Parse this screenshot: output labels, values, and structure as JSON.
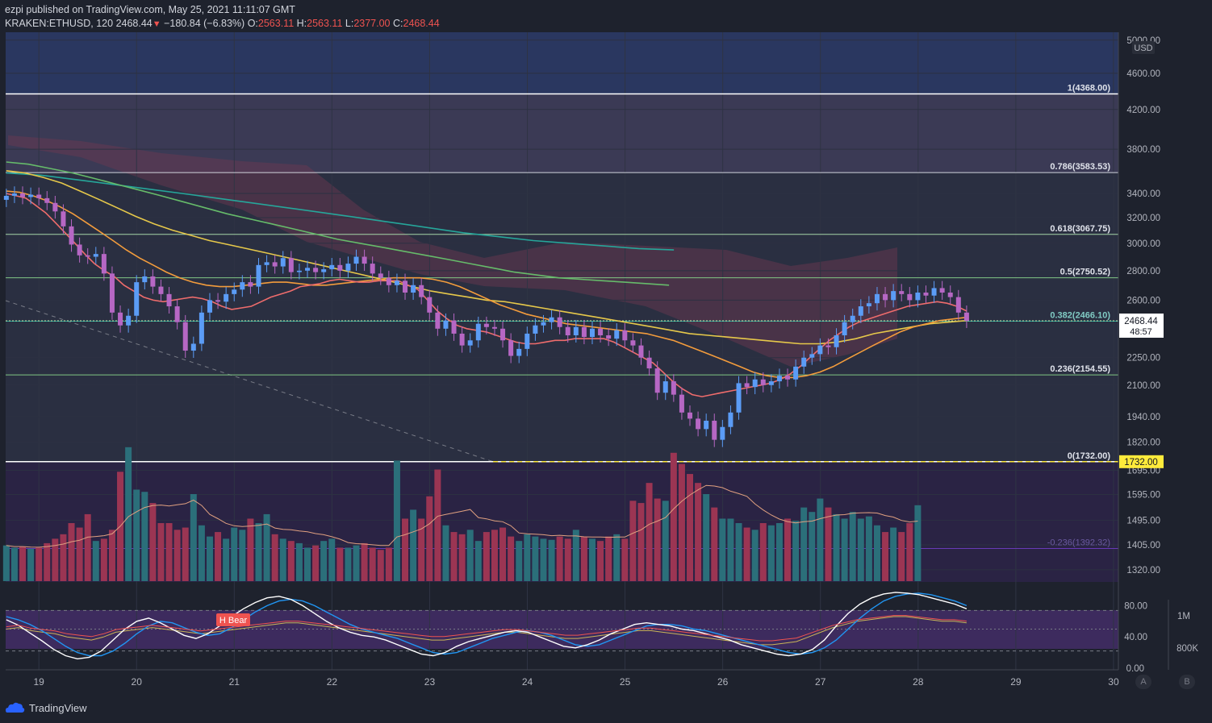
{
  "header": {
    "publisher": "ezpi published on TradingView.com, May 25, 2021 11:11:07 GMT",
    "symbol": "KRAKEN:ETHUSD, 120",
    "last": "2468.44",
    "change": "−180.84 (−6.83%)",
    "o_label": "O:",
    "o_value": "2563.11",
    "h_label": "H:",
    "h_value": "2563.11",
    "l_label": "L:",
    "l_value": "2377.00",
    "c_label": "C:",
    "c_value": "2468.44"
  },
  "brand": {
    "name": "TradingView"
  },
  "axis_buttons": {
    "auto": "A",
    "log": "B"
  },
  "colors": {
    "up": "#5b9cf6",
    "down": "#b667c4",
    "bg": "#1e222d",
    "highlight": "#ffeb3b"
  },
  "chart_data": {
    "type": "candlestick",
    "title": "KRAKEN:ETHUSD, 120",
    "price_axis": {
      "unit": "USD",
      "scale": "log",
      "ticks": [
        5000,
        4600,
        4200,
        3800,
        3400,
        3200,
        3000,
        2800,
        2600,
        2250,
        2100,
        1940,
        1820,
        1695,
        1595,
        1495,
        1405,
        1320
      ],
      "tick_labels": [
        "5000.00",
        "4600.00",
        "4200.00",
        "3800.00",
        "3400.00",
        "3200.00",
        "3000.00",
        "2800.00",
        "2600.00",
        "2250.00",
        "2100.00",
        "1940.00",
        "1820.00",
        "1695.00",
        "1595.00",
        "1495.00",
        "1405.00",
        "1320.00"
      ],
      "range": [
        1280,
        5100
      ]
    },
    "last_price": {
      "value": 2468.44,
      "label": "2468.44",
      "countdown": "48:57"
    },
    "low_marker": {
      "value": 1732,
      "label": "1732.00"
    },
    "x_axis": {
      "labels": [
        "19",
        "20",
        "21",
        "22",
        "23",
        "24",
        "25",
        "26",
        "27",
        "28",
        "29",
        "30"
      ],
      "range": [
        18.66,
        30.05
      ]
    },
    "fibonacci": [
      {
        "ratio": "1",
        "price": 4368.0,
        "label": "1(4368.00)"
      },
      {
        "ratio": "0.786",
        "price": 3583.53,
        "label": "0.786(3583.53)"
      },
      {
        "ratio": "0.618",
        "price": 3067.75,
        "label": "0.618(3067.75)"
      },
      {
        "ratio": "0.5",
        "price": 2750.52,
        "label": "0.5(2750.52)"
      },
      {
        "ratio": "0.382",
        "price": 2466.1,
        "label": "0.382(2466.10)"
      },
      {
        "ratio": "0.236",
        "price": 2154.55,
        "label": "0.236(2154.55)"
      },
      {
        "ratio": "0",
        "price": 1732.0,
        "label": "0(1732.00)"
      },
      {
        "ratio": "-0.236",
        "price": 1392.32,
        "label": "-0.236(1392.32)"
      }
    ],
    "candles_close": [
      3380,
      3400,
      3370,
      3390,
      3360,
      3320,
      3250,
      3130,
      2990,
      2910,
      2900,
      2920,
      2780,
      2520,
      2440,
      2500,
      2720,
      2760,
      2690,
      2640,
      2560,
      2460,
      2290,
      2330,
      2520,
      2600,
      2590,
      2640,
      2670,
      2720,
      2690,
      2840,
      2860,
      2830,
      2890,
      2790,
      2800,
      2820,
      2790,
      2810,
      2840,
      2800,
      2850,
      2900,
      2850,
      2780,
      2750,
      2700,
      2730,
      2650,
      2700,
      2620,
      2520,
      2420,
      2470,
      2390,
      2320,
      2350,
      2450,
      2430,
      2420,
      2350,
      2260,
      2300,
      2390,
      2440,
      2460,
      2490,
      2430,
      2380,
      2430,
      2370,
      2420,
      2380,
      2360,
      2410,
      2350,
      2320,
      2250,
      2190,
      2060,
      2120,
      2050,
      1960,
      1930,
      1880,
      1920,
      1830,
      1890,
      1960,
      2110,
      2090,
      2130,
      2100,
      2120,
      2150,
      2130,
      2200,
      2250,
      2270,
      2320,
      2310,
      2380,
      2460,
      2500,
      2560,
      2580,
      2640,
      2600,
      2660,
      2640,
      2600,
      2650,
      2630,
      2680,
      2650,
      2620,
      2520,
      2468.44
    ],
    "candles_start_day": 18.667,
    "candle_step_days": 0.0833,
    "ma_fast": [
      3400,
      3380,
      3360,
      3300,
      3240,
      3160,
      3080,
      3000,
      2920,
      2850,
      2800,
      2760,
      2700,
      2660,
      2620,
      2600,
      2590,
      2600,
      2610,
      2620,
      2610,
      2590,
      2560,
      2540,
      2550,
      2560,
      2590,
      2620,
      2640,
      2660,
      2690,
      2700,
      2710,
      2730,
      2740,
      2730,
      2720,
      2720,
      2730,
      2730,
      2730,
      2700,
      2670,
      2600,
      2530,
      2480,
      2440,
      2420,
      2410,
      2400,
      2380,
      2360,
      2340,
      2330,
      2330,
      2340,
      2350,
      2350,
      2360,
      2360,
      2360,
      2360,
      2340,
      2310,
      2280,
      2250,
      2220,
      2170,
      2120,
      2080,
      2050,
      2040,
      2050,
      2060,
      2070,
      2080,
      2090,
      2100,
      2110,
      2130,
      2160,
      2200,
      2250,
      2300,
      2350,
      2390,
      2430,
      2460,
      2480,
      2500,
      2520,
      2540,
      2560,
      2570,
      2580,
      2590,
      2580,
      2560,
      2530
    ],
    "ma_slow_orange": [
      3420,
      3410,
      3380,
      3340,
      3290,
      3230,
      3160,
      3090,
      3020,
      2950,
      2890,
      2840,
      2790,
      2750,
      2720,
      2700,
      2690,
      2690,
      2700,
      2710,
      2720,
      2720,
      2710,
      2700,
      2700,
      2710,
      2720,
      2730,
      2740,
      2750,
      2750,
      2750,
      2740,
      2720,
      2690,
      2650,
      2610,
      2570,
      2540,
      2510,
      2490,
      2470,
      2450,
      2440,
      2430,
      2420,
      2410,
      2400,
      2390,
      2370,
      2350,
      2320,
      2290,
      2260,
      2230,
      2200,
      2170,
      2150,
      2140,
      2140,
      2150,
      2170,
      2200,
      2240,
      2280,
      2320,
      2360,
      2400,
      2430,
      2450,
      2470,
      2480,
      2490
    ],
    "ma_100_yellow": [
      3600,
      3580,
      3540,
      3490,
      3420,
      3350,
      3280,
      3210,
      3150,
      3100,
      3060,
      3020,
      2990,
      2960,
      2930,
      2900,
      2870,
      2840,
      2810,
      2780,
      2750,
      2720,
      2690,
      2660,
      2640,
      2620,
      2600,
      2590,
      2570,
      2550,
      2530,
      2510,
      2490,
      2470,
      2450,
      2430,
      2410,
      2390,
      2380,
      2370,
      2360,
      2350,
      2340,
      2330,
      2330,
      2340,
      2360,
      2390,
      2410,
      2430,
      2450,
      2460,
      2470
    ],
    "ma_200_green": [
      3680,
      3660,
      3620,
      3580,
      3530,
      3480,
      3430,
      3380,
      3330,
      3280,
      3230,
      3190,
      3150,
      3110,
      3070,
      3030,
      3000,
      2970,
      2940,
      2910,
      2880,
      2850,
      2820,
      2790,
      2770,
      2750,
      2740,
      2730,
      2720,
      2710,
      2700
    ],
    "ma_teal": [
      3580,
      3560,
      3520,
      3480,
      3440,
      3400,
      3360,
      3320,
      3280,
      3240,
      3200,
      3160,
      3120,
      3080,
      3050,
      3020,
      3000,
      2980,
      2960,
      2950
    ],
    "volume": [
      320,
      300,
      310,
      290,
      300,
      340,
      380,
      420,
      520,
      480,
      600,
      360,
      380,
      460,
      980,
      1200,
      820,
      800,
      700,
      520,
      520,
      460,
      480,
      780,
      500,
      400,
      440,
      380,
      480,
      460,
      560,
      520,
      600,
      420,
      380,
      360,
      340,
      300,
      320,
      360,
      380,
      300,
      300,
      320,
      340,
      300,
      280,
      300,
      1080,
      560,
      640,
      560,
      760,
      1000,
      500,
      440,
      420,
      460,
      360,
      440,
      460,
      480,
      400,
      360,
      420,
      400,
      380,
      370,
      400,
      380,
      460,
      400,
      380,
      360,
      400,
      420,
      380,
      720,
      700,
      880,
      740,
      720,
      1150,
      1050,
      960,
      880,
      780,
      660,
      560,
      560,
      520,
      480,
      460,
      520,
      500,
      520,
      560,
      540,
      660,
      620,
      740,
      660,
      600,
      560,
      620,
      560,
      580,
      500,
      440,
      480,
      440,
      520,
      680
    ],
    "volume_scale_max": 1300,
    "stoch_rsi": {
      "labels": [
        "80.00",
        "40.00",
        "0.00"
      ],
      "k": [
        62,
        55,
        45,
        35,
        24,
        16,
        12,
        14,
        22,
        36,
        50,
        60,
        64,
        58,
        50,
        42,
        38,
        44,
        54,
        66,
        76,
        84,
        90,
        92,
        88,
        80,
        70,
        60,
        52,
        46,
        42,
        40,
        36,
        30,
        24,
        18,
        16,
        20,
        28,
        34,
        38,
        42,
        46,
        48,
        46,
        40,
        34,
        28,
        26,
        30,
        36,
        44,
        50,
        56,
        58,
        56,
        54,
        50,
        48,
        44,
        40,
        36,
        30,
        26,
        22,
        18,
        16,
        18,
        24,
        36,
        54,
        70,
        82,
        90,
        95,
        97,
        96,
        94,
        90,
        86,
        82,
        76
      ],
      "d": [
        66,
        62,
        56,
        48,
        38,
        28,
        20,
        16,
        16,
        22,
        32,
        44,
        54,
        60,
        58,
        52,
        46,
        42,
        44,
        52,
        62,
        72,
        80,
        86,
        88,
        86,
        80,
        72,
        64,
        56,
        50,
        46,
        42,
        38,
        32,
        26,
        20,
        18,
        20,
        26,
        32,
        38,
        42,
        46,
        48,
        46,
        42,
        36,
        30,
        28,
        30,
        36,
        42,
        48,
        54,
        56,
        56,
        54,
        50,
        48,
        44,
        40,
        36,
        32,
        28,
        24,
        20,
        18,
        20,
        26,
        36,
        50,
        64,
        76,
        86,
        92,
        95,
        96,
        94,
        90,
        86,
        80
      ],
      "rsi": [
        50,
        52,
        48,
        46,
        44,
        40,
        38,
        36,
        40,
        46,
        48,
        50,
        52,
        50,
        48,
        46,
        44,
        46,
        48,
        50,
        52,
        54,
        56,
        58,
        58,
        56,
        54,
        52,
        50,
        48,
        46,
        44,
        42,
        40,
        38,
        36,
        36,
        38,
        40,
        42,
        44,
        46,
        46,
        44,
        42,
        40,
        38,
        38,
        40,
        42,
        44,
        46,
        48,
        48,
        46,
        44,
        42,
        40,
        38,
        36,
        34,
        32,
        30,
        30,
        32,
        34,
        40,
        46,
        52,
        56,
        60,
        62,
        64,
        66,
        66,
        64,
        62,
        60,
        60,
        58
      ],
      "bear_label": "H Bear",
      "volume_labels": [
        "1M",
        "800K"
      ]
    }
  }
}
